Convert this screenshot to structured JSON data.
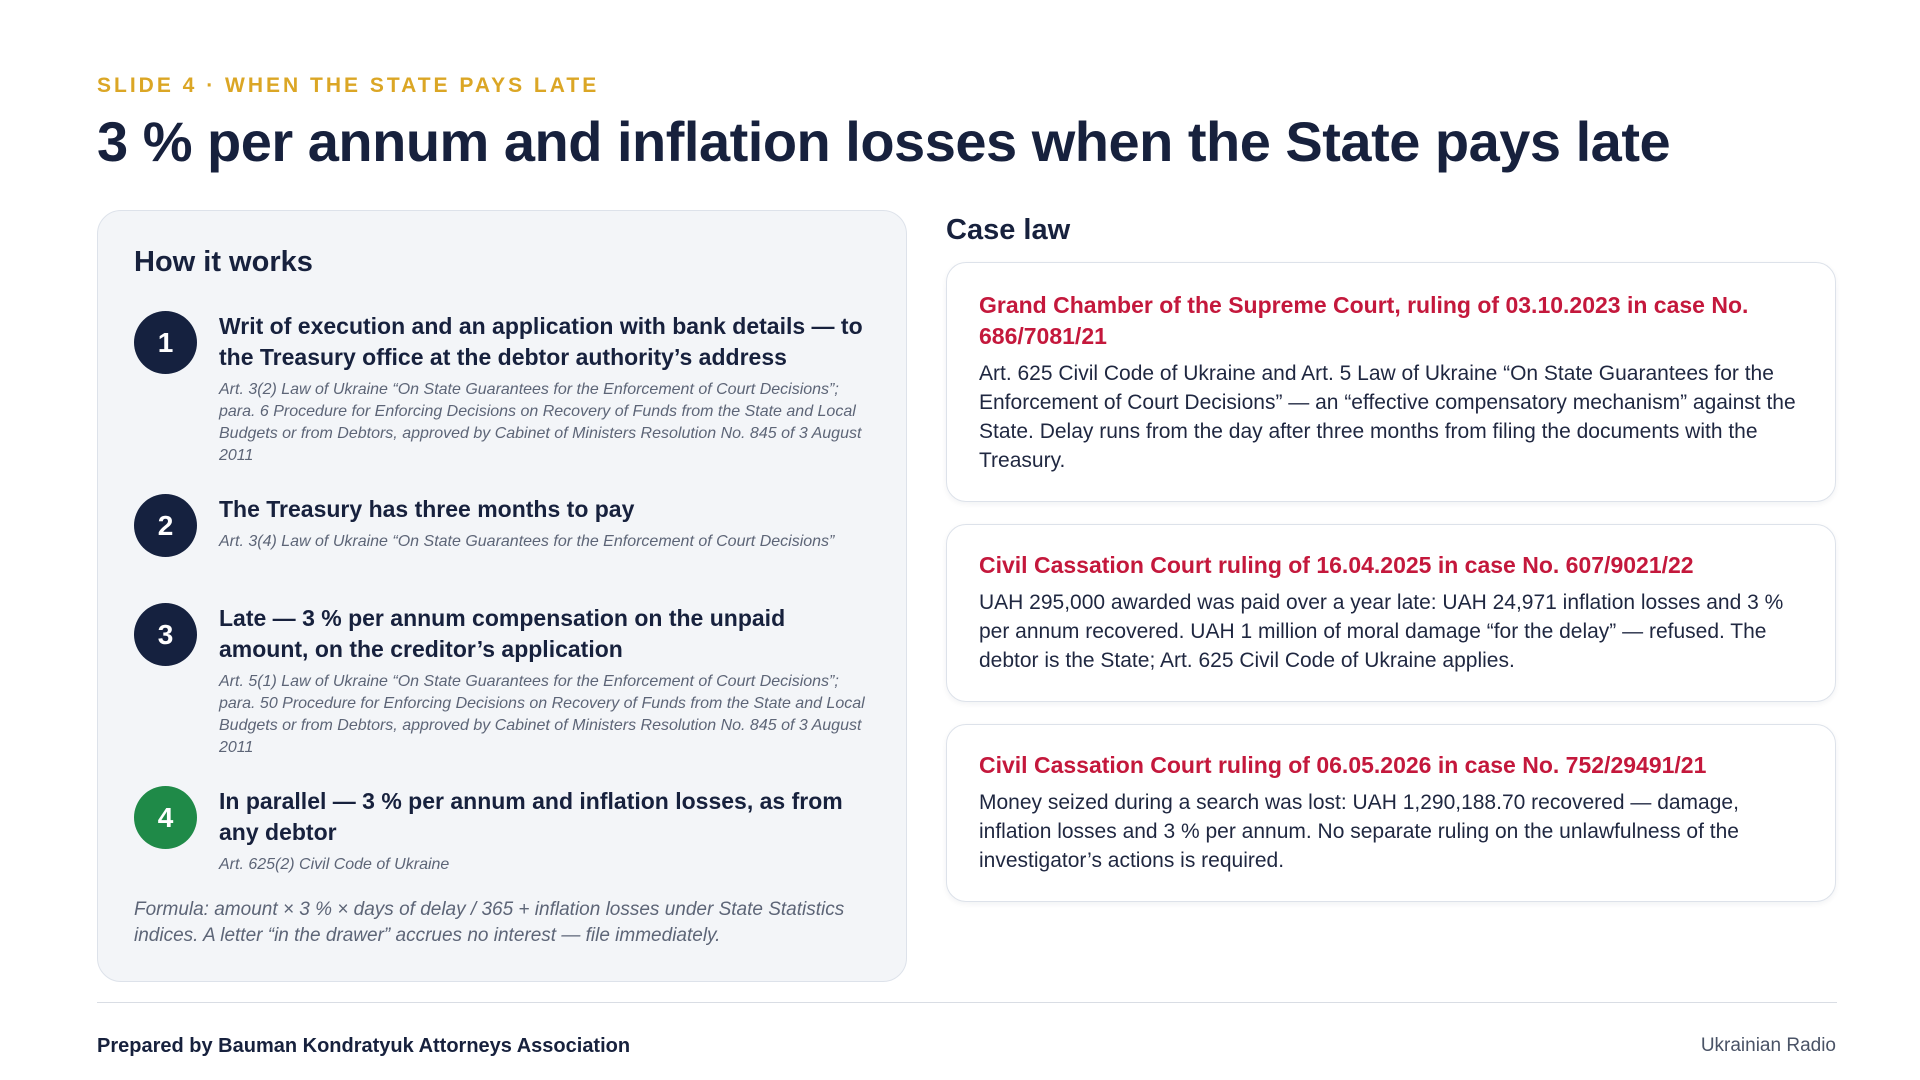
{
  "header": {
    "kicker": "SLIDE 4 · WHEN THE STATE PAYS LATE",
    "title": "3 % per annum and inflation losses when the State pays late"
  },
  "how_it_works": {
    "title": "How it works",
    "steps": [
      {
        "number": "1",
        "heading": "Writ of execution and an application with bank details — to the Treasury office at the debtor authority’s address",
        "reference": "Art. 3(2) Law of Ukraine “On State Guarantees for the Enforcement of Court Decisions”; para. 6 Procedure for Enforcing Decisions on Recovery of Funds from the State and Local Budgets or from Debtors, approved by Cabinet of Ministers Resolution No. 845 of 3 August 2011"
      },
      {
        "number": "2",
        "heading": "The Treasury has three months to pay",
        "reference": "Art. 3(4) Law of Ukraine “On State Guarantees for the Enforcement of Court Decisions”"
      },
      {
        "number": "3",
        "heading": "Late — 3 % per annum compensation on the unpaid amount, on the creditor’s application",
        "reference": "Art. 5(1) Law of Ukraine “On State Guarantees for the Enforcement of Court Decisions”; para. 50 Procedure for Enforcing Decisions on Recovery of Funds from the State and Local Budgets or from Debtors, approved by Cabinet of Ministers Resolution No. 845 of 3 August 2011"
      },
      {
        "number": "4",
        "heading": "In parallel — 3 % per annum and inflation losses, as from any debtor",
        "reference": "Art. 625(2) Civil Code of Ukraine"
      }
    ],
    "formula": "Formula: amount × 3 % × days of delay / 365 + inflation losses under State Statistics indices. A letter “in the drawer” accrues no interest — file immediately."
  },
  "case_law": {
    "title": "Case law",
    "cases": [
      {
        "heading": "Grand Chamber of the Supreme Court, ruling of 03.10.2023 in case No. 686/7081/21",
        "text": "Art. 625 Civil Code of Ukraine and Art. 5 Law of Ukraine “On State Guarantees for the Enforcement of Court Decisions” — an “effective compensatory mechanism” against the State. Delay runs from the day after three months from filing the documents with the Treasury."
      },
      {
        "heading": "Civil Cassation Court ruling of 16.04.2025 in case No. 607/9021/22",
        "text": "UAH 295,000 awarded was paid over a year late: UAH 24,971 inflation losses and 3 % per annum recovered. UAH 1 million of moral damage “for the delay” — refused. The debtor is the State; Art. 625 Civil Code of Ukraine applies."
      },
      {
        "heading": "Civil Cassation Court ruling of 06.05.2026 in case No. 752/29491/21",
        "text": "Money seized during a search was lost: UAH 1,290,188.70 recovered — damage, inflation losses and 3 % per annum. No separate ruling on the unlawfulness of the investigator’s actions is required."
      }
    ]
  },
  "footer": {
    "left": "Prepared by Bauman Kondratyuk Attorneys Association",
    "right": "Ukrainian Radio"
  },
  "colors": {
    "kicker": "#dba625",
    "navy": "#15213f",
    "green": "#1f8a48",
    "case_heading": "#c4183c"
  }
}
